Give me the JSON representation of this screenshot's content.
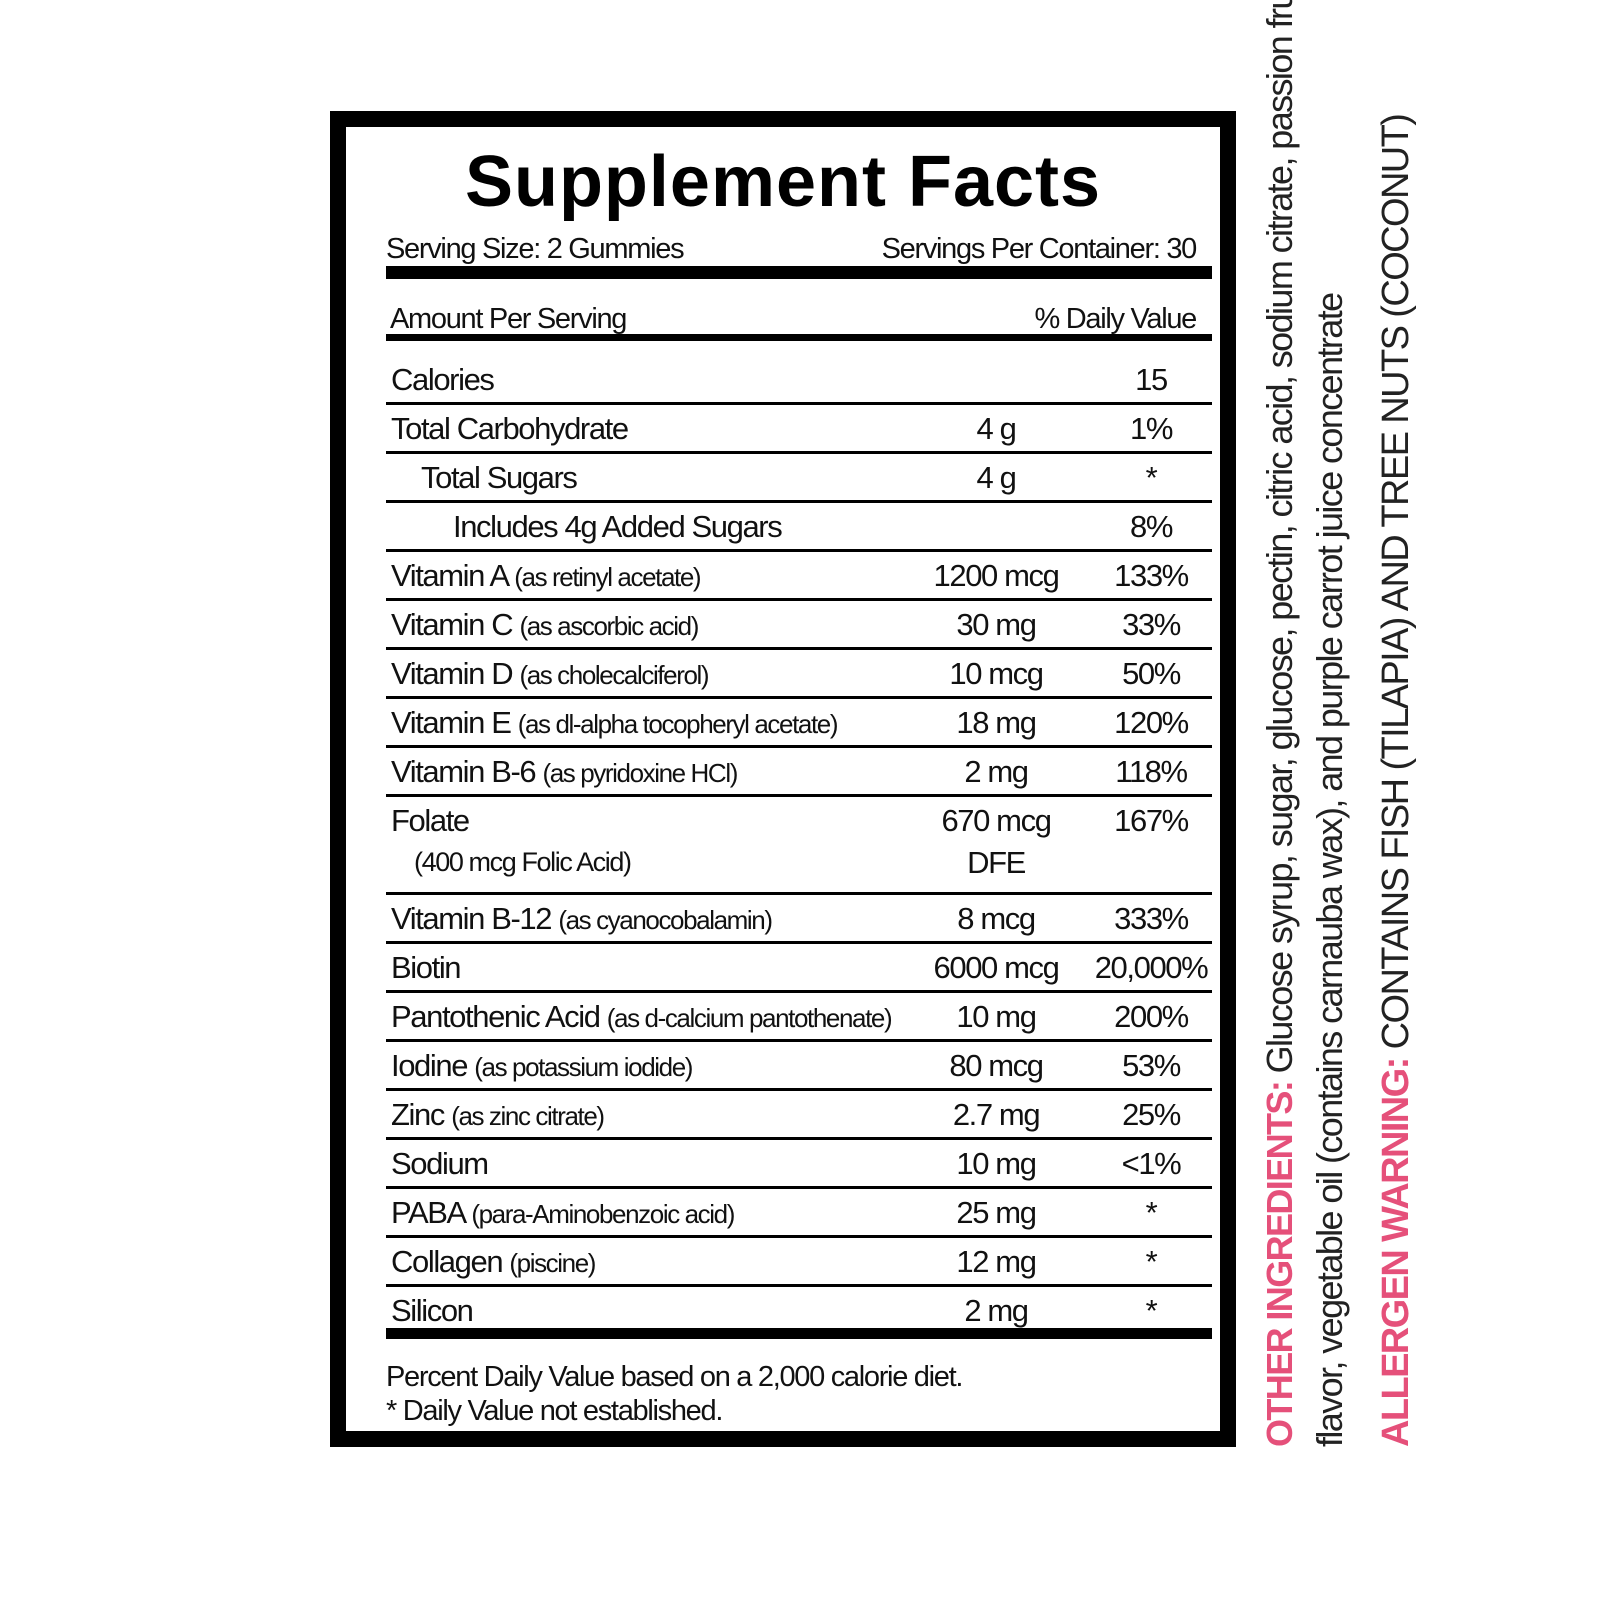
{
  "label": {
    "title": "Supplement Facts",
    "serving_size": "Serving Size: 2 Gummies",
    "servings_per_container": "Servings Per Container: 30",
    "amount_per_serving": "Amount Per Serving",
    "daily_value_header": "% Daily Value",
    "rows": [
      {
        "name": "Calories",
        "sub": "",
        "amount": "",
        "dv": "15"
      },
      {
        "name": "Total Carbohydrate",
        "sub": "",
        "amount": "4 g",
        "dv": "1%"
      },
      {
        "name": "Total Sugars",
        "sub": "",
        "amount": "4 g",
        "dv": "*"
      },
      {
        "name": "Includes 4g Added Sugars",
        "sub": "",
        "amount": "",
        "dv": "8%"
      },
      {
        "name": "Vitamin A",
        "sub": "(as retinyl acetate)",
        "amount": "1200 mcg",
        "dv": "133%"
      },
      {
        "name": "Vitamin C",
        "sub": "(as ascorbic acid)",
        "amount": "30 mg",
        "dv": "33%"
      },
      {
        "name": "Vitamin D",
        "sub": "(as cholecalciferol)",
        "amount": "10 mcg",
        "dv": "50%"
      },
      {
        "name": "Vitamin E",
        "sub": "(as dl-alpha tocopheryl acetate)",
        "amount": "18 mg",
        "dv": "120%"
      },
      {
        "name": "Vitamin B-6",
        "sub": "(as pyridoxine HCl)",
        "amount": "2 mg",
        "dv": "118%"
      },
      {
        "name": "Folate",
        "sub": "(400 mcg Folic Acid)",
        "amount": "670 mcg",
        "amount2": "DFE",
        "dv": "167%"
      },
      {
        "name": "Vitamin B-12",
        "sub": "(as cyanocobalamin)",
        "amount": "8 mcg",
        "dv": "333%"
      },
      {
        "name": "Biotin",
        "sub": "",
        "amount": "6000 mcg",
        "dv": "20,000%"
      },
      {
        "name": "Pantothenic Acid",
        "sub": "(as d-calcium pantothenate)",
        "amount": "10 mg",
        "dv": "200%"
      },
      {
        "name": "Iodine",
        "sub": "(as potassium iodide)",
        "amount": "80 mcg",
        "dv": "53%"
      },
      {
        "name": "Zinc",
        "sub": "(as zinc citrate)",
        "amount": "2.7 mg",
        "dv": "25%"
      },
      {
        "name": "Sodium",
        "sub": "",
        "amount": "10 mg",
        "dv": "<1%"
      },
      {
        "name": "PABA",
        "sub": "(para-Aminobenzoic acid)",
        "amount": "25 mg",
        "dv": "*"
      },
      {
        "name": "Collagen",
        "sub": "(piscine)",
        "amount": "12 mg",
        "dv": "*"
      },
      {
        "name": "Silicon",
        "sub": "",
        "amount": "2 mg",
        "dv": "*"
      }
    ],
    "footnote_1": "Percent Daily Value based on a 2,000 calorie diet.",
    "footnote_2": "* Daily Value not established."
  },
  "side": {
    "other_ingredients_label": "OTHER INGREDIENTS:",
    "other_ingredients_line1": "Glucose syrup, sugar, glucose, pectin, citric acid, sodium citrate, passion fruit",
    "other_ingredients_line2": "flavor, vegetable oil (contains carnauba wax), and purple carrot juice concentrate",
    "allergen_label": "ALLERGEN WARNING:",
    "allergen_text": "CONTAINS FISH (TILAPIA) AND TREE NUTS (COCONUT)",
    "accent_color": "#e5507a"
  }
}
